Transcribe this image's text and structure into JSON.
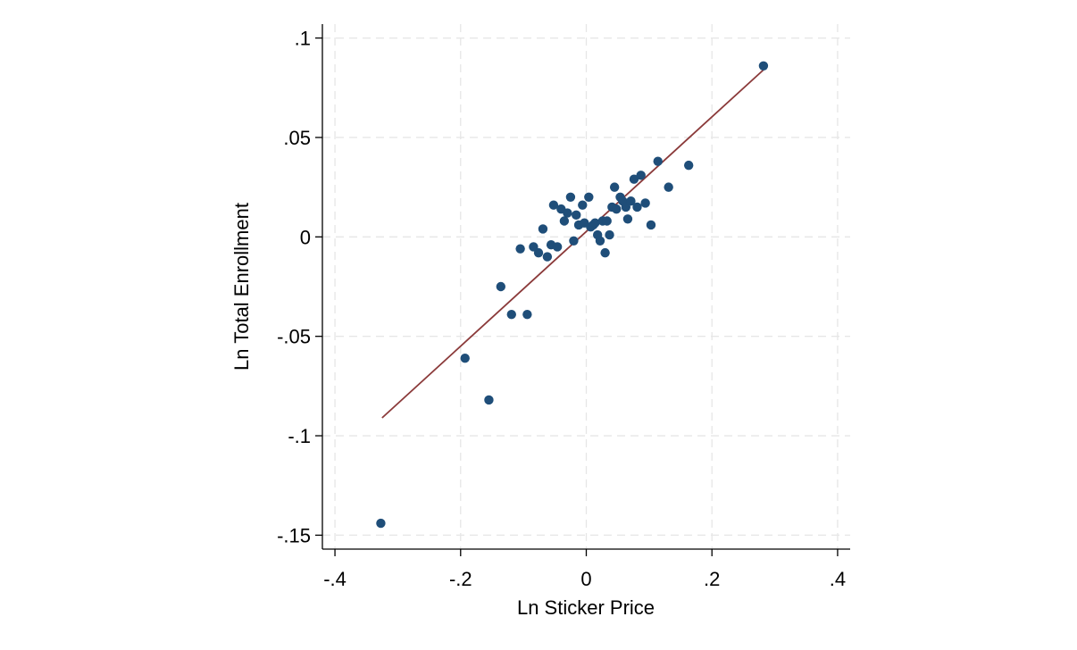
{
  "chart_data": {
    "type": "scatter",
    "xlabel": "Ln Sticker Price",
    "ylabel": "Ln Total Enrollment",
    "xlim": [
      -0.42,
      0.42
    ],
    "ylim": [
      -0.157,
      0.107
    ],
    "xticks": [
      {
        "value": -0.4,
        "label": "-.4"
      },
      {
        "value": -0.2,
        "label": "-.2"
      },
      {
        "value": 0,
        "label": "0"
      },
      {
        "value": 0.2,
        "label": ".2"
      },
      {
        "value": 0.4,
        "label": ".4"
      }
    ],
    "yticks": [
      {
        "value": 0.1,
        "label": ".1"
      },
      {
        "value": 0.05,
        "label": ".05"
      },
      {
        "value": 0,
        "label": "0"
      },
      {
        "value": -0.05,
        "label": "-.05"
      },
      {
        "value": -0.1,
        "label": "-.1"
      },
      {
        "value": -0.15,
        "label": "-.15"
      }
    ],
    "grid": true,
    "colors": {
      "points": "#1f4e79",
      "fit_line": "#8b3a3a",
      "grid": "#e6e6e6"
    },
    "points": [
      {
        "x": -0.327,
        "y": -0.144
      },
      {
        "x": -0.193,
        "y": -0.061
      },
      {
        "x": -0.155,
        "y": -0.082
      },
      {
        "x": -0.136,
        "y": -0.025
      },
      {
        "x": -0.119,
        "y": -0.039
      },
      {
        "x": -0.105,
        "y": -0.006
      },
      {
        "x": -0.094,
        "y": -0.039
      },
      {
        "x": -0.084,
        "y": -0.005
      },
      {
        "x": -0.076,
        "y": -0.008
      },
      {
        "x": -0.069,
        "y": 0.004
      },
      {
        "x": -0.062,
        "y": -0.01
      },
      {
        "x": -0.056,
        "y": -0.004
      },
      {
        "x": -0.052,
        "y": 0.016
      },
      {
        "x": -0.046,
        "y": -0.005
      },
      {
        "x": -0.04,
        "y": 0.014
      },
      {
        "x": -0.035,
        "y": 0.008
      },
      {
        "x": -0.03,
        "y": 0.012
      },
      {
        "x": -0.025,
        "y": 0.02
      },
      {
        "x": -0.02,
        "y": -0.002
      },
      {
        "x": -0.016,
        "y": 0.011
      },
      {
        "x": -0.012,
        "y": 0.006
      },
      {
        "x": -0.006,
        "y": 0.016
      },
      {
        "x": -0.003,
        "y": 0.007
      },
      {
        "x": 0.004,
        "y": 0.02
      },
      {
        "x": 0.007,
        "y": 0.005
      },
      {
        "x": 0.011,
        "y": 0.006
      },
      {
        "x": 0.014,
        "y": 0.007
      },
      {
        "x": 0.018,
        "y": 0.001
      },
      {
        "x": 0.022,
        "y": -0.002
      },
      {
        "x": 0.026,
        "y": 0.008
      },
      {
        "x": 0.03,
        "y": -0.008
      },
      {
        "x": 0.033,
        "y": 0.008
      },
      {
        "x": 0.037,
        "y": 0.001
      },
      {
        "x": 0.041,
        "y": 0.015
      },
      {
        "x": 0.045,
        "y": 0.025
      },
      {
        "x": 0.048,
        "y": 0.014
      },
      {
        "x": 0.054,
        "y": 0.02
      },
      {
        "x": 0.058,
        "y": 0.018
      },
      {
        "x": 0.063,
        "y": 0.015
      },
      {
        "x": 0.066,
        "y": 0.009
      },
      {
        "x": 0.071,
        "y": 0.018
      },
      {
        "x": 0.076,
        "y": 0.029
      },
      {
        "x": 0.081,
        "y": 0.015
      },
      {
        "x": 0.087,
        "y": 0.031
      },
      {
        "x": 0.094,
        "y": 0.017
      },
      {
        "x": 0.103,
        "y": 0.006
      },
      {
        "x": 0.114,
        "y": 0.038
      },
      {
        "x": 0.131,
        "y": 0.025
      },
      {
        "x": 0.163,
        "y": 0.036
      },
      {
        "x": 0.282,
        "y": 0.086
      }
    ],
    "fit_line": {
      "x": [
        -0.325,
        0.282
      ],
      "y": [
        -0.091,
        0.084
      ]
    }
  }
}
